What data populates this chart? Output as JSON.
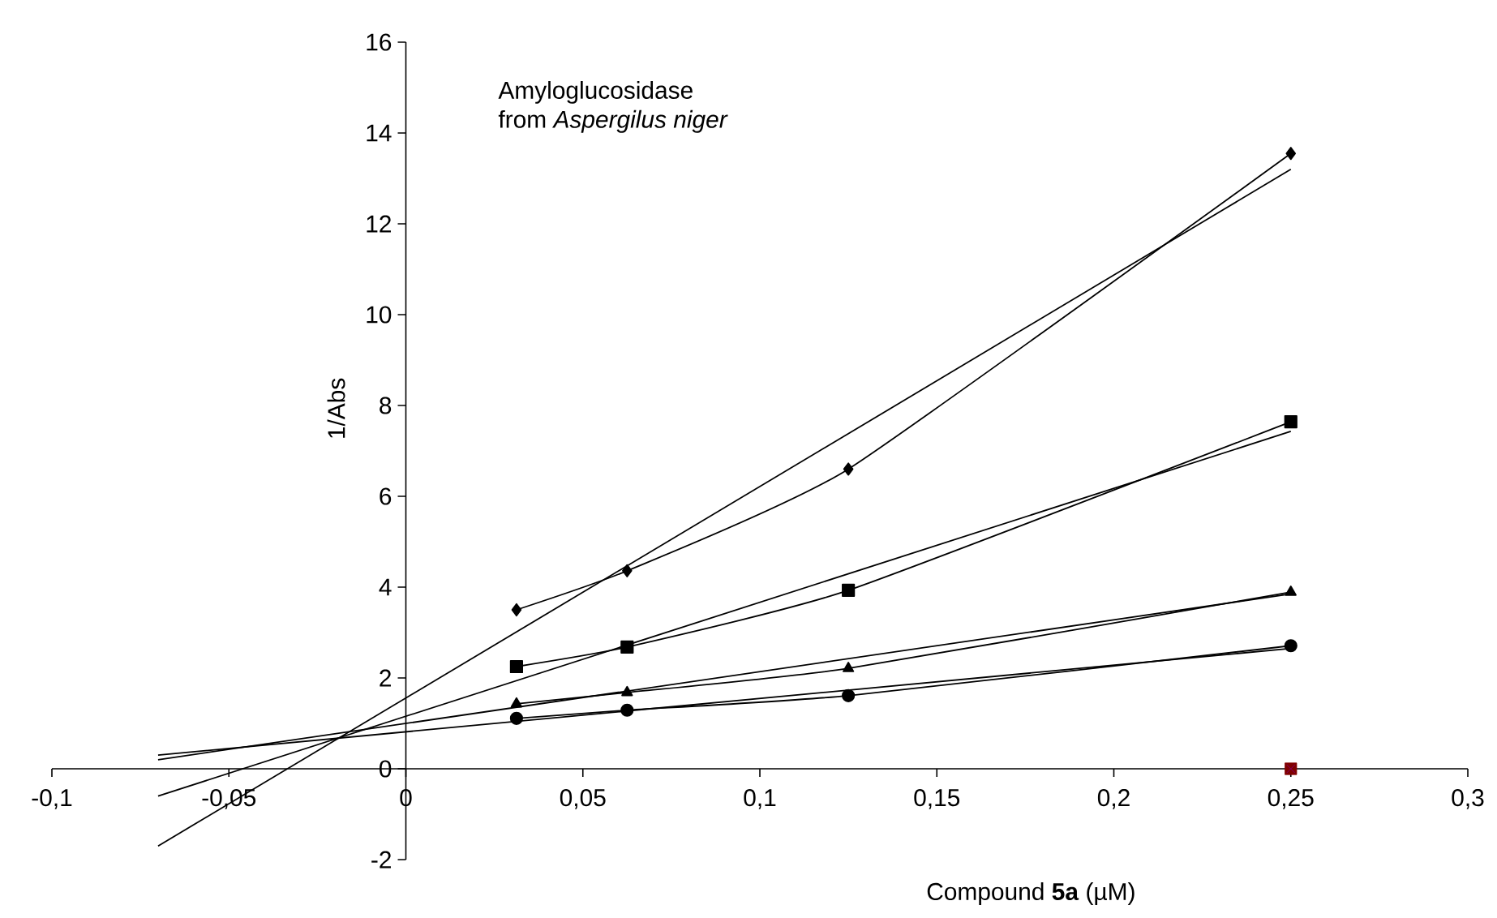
{
  "chart_data": {
    "type": "line",
    "xlabel": "Compound **5a**  (µM)",
    "ylabel": "1/Abs",
    "annotations": [
      "Amyloglucosidase",
      "from *Aspergilus niger*"
    ],
    "xlim": [
      -0.1,
      0.3
    ],
    "ylim": [
      -2,
      16
    ],
    "xticks": [
      {
        "value": -0.1,
        "label": "-0,1"
      },
      {
        "value": -0.05,
        "label": "-0,05"
      },
      0,
      {
        "value": 0.05,
        "label": "0,05"
      },
      {
        "value": 0.1,
        "label": "0,1"
      },
      {
        "value": 0.15,
        "label": "0,15"
      },
      {
        "value": 0.2,
        "label": "0,2"
      },
      {
        "value": 0.25,
        "label": "0,25"
      },
      {
        "value": 0.3,
        "label": "0,3"
      }
    ],
    "yticks": [
      -2,
      0,
      2,
      4,
      6,
      8,
      10,
      12,
      14,
      16
    ],
    "series": [
      {
        "color": "#000000",
        "marker": "diamond",
        "x": [
          0.03125,
          0.0625,
          0.125,
          0.25
        ],
        "values": [
          3.5,
          4.36,
          6.6,
          13.55
        ]
      },
      {
        "color": "#000000",
        "marker": "square",
        "x": [
          0.03125,
          0.0625,
          0.125,
          0.25
        ],
        "values": [
          2.25,
          2.68,
          3.93,
          7.64
        ]
      },
      {
        "color": "#000000",
        "marker": "triangle",
        "x": [
          0.03125,
          0.0625,
          0.125,
          0.25
        ],
        "values": [
          1.43,
          1.68,
          2.21,
          3.89
        ]
      },
      {
        "color": "#000000",
        "marker": "circle",
        "x": [
          0.03125,
          0.0625,
          0.125,
          0.25
        ],
        "values": [
          1.11,
          1.29,
          1.61,
          2.71
        ]
      },
      {
        "color": "#000000",
        "marker": "none",
        "x": [
          -0.07,
          0.25
        ],
        "values": [
          -1.7,
          13.2
        ]
      },
      {
        "color": "#000000",
        "marker": "none",
        "x": [
          -0.07,
          0.25
        ],
        "values": [
          -0.6,
          7.43
        ]
      },
      {
        "color": "#000000",
        "marker": "none",
        "x": [
          -0.07,
          0.25
        ],
        "values": [
          0.2,
          3.85
        ]
      },
      {
        "color": "#000000",
        "marker": "none",
        "x": [
          -0.07,
          0.25
        ],
        "values": [
          0.3,
          2.65
        ]
      },
      {
        "type": "scatter",
        "color": "#800000",
        "marker": "square",
        "x": [
          0.25
        ],
        "values": [
          0
        ]
      },
      {
        "type": "scatter",
        "color": "#800080",
        "marker": "cross",
        "x": [
          0.25
        ],
        "values": [
          0
        ]
      }
    ]
  }
}
